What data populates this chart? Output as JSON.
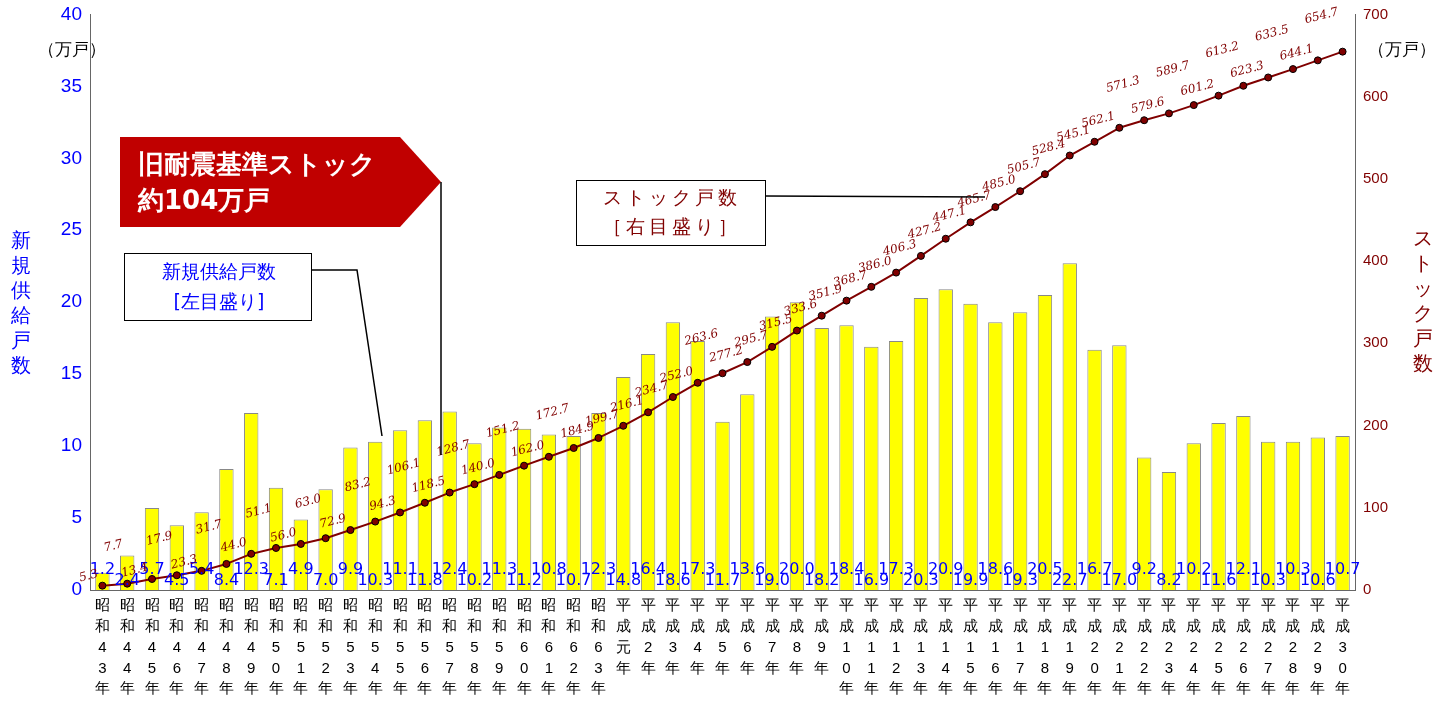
{
  "chart_data": {
    "type": "bar",
    "ylabel": "新規供給戸数",
    "y2label": "ストック戸数",
    "categories": [
      "昭和43年",
      "昭和44年",
      "昭和45年",
      "昭和46年",
      "昭和47年",
      "昭和48年",
      "昭和49年",
      "昭和50年",
      "昭和51年",
      "昭和52年",
      "昭和53年",
      "昭和54年",
      "昭和55年",
      "昭和56年",
      "昭和57年",
      "昭和58年",
      "昭和59年",
      "昭和60年",
      "昭和61年",
      "昭和62年",
      "昭和63年",
      "平成元年",
      "平成2年",
      "平成3年",
      "平成4年",
      "平成5年",
      "平成6年",
      "平成7年",
      "平成8年",
      "平成9年",
      "平成10年",
      "平成11年",
      "平成12年",
      "平成13年",
      "平成14年",
      "平成15年",
      "平成16年",
      "平成17年",
      "平成18年",
      "平成19年",
      "平成20年",
      "平成21年",
      "平成22年",
      "平成23年",
      "平成24年",
      "平成25年",
      "平成26年",
      "平成27年",
      "平成28年",
      "平成29年",
      "平成30年"
    ],
    "series": [
      {
        "color": "#ffff00",
        "values": [
          1.2,
          2.4,
          5.7,
          4.5,
          5.4,
          8.4,
          12.3,
          7.1,
          4.9,
          7.0,
          9.9,
          10.3,
          11.1,
          11.8,
          12.4,
          10.2,
          11.3,
          11.2,
          10.8,
          10.7,
          12.3,
          14.8,
          16.4,
          18.6,
          17.3,
          11.7,
          13.6,
          19.0,
          20.0,
          18.2,
          18.4,
          16.9,
          17.3,
          20.3,
          20.9,
          19.9,
          18.6,
          19.3,
          20.5,
          22.7,
          16.7,
          17.0,
          9.2,
          8.2,
          10.2,
          11.6,
          12.1,
          10.3,
          10.3,
          10.6,
          10.7
        ],
        "value_labels": [
          "1.2",
          "2.4",
          "5.7",
          "4.5",
          "5.4",
          "8.4",
          "12.3",
          "7.1",
          "4.9",
          "7.0",
          "9.9",
          "10.3",
          "11.1",
          "11.8",
          "12.4",
          "10.2",
          "11.3",
          "11.2",
          "10.8",
          "10.7",
          "12.3",
          "14.8",
          "16.4",
          "18.6",
          "17.3",
          "11.7",
          "13.6",
          "19.0",
          "20.0",
          "18.2",
          "18.4",
          "16.9",
          "17.3",
          "20.3",
          "20.9",
          "19.9",
          "18.6",
          "19.3",
          "20.5",
          "22.7",
          "16.7",
          "17.0",
          "9.2",
          "8.2",
          "10.2",
          "11.6",
          "12.1",
          "10.3",
          "10.3",
          "10.6",
          "10.7"
        ]
      },
      {
        "type": "line",
        "axis": "y2",
        "color": "#800000",
        "values": [
          5.3,
          7.7,
          13.4,
          17.9,
          23.3,
          31.7,
          44.0,
          51.1,
          56.0,
          63.0,
          72.9,
          83.2,
          94.3,
          106.1,
          118.5,
          128.7,
          140.0,
          151.2,
          162.0,
          172.7,
          184.9,
          199.7,
          216.1,
          234.7,
          252.0,
          263.6,
          277.2,
          295.7,
          315.5,
          333.6,
          351.9,
          368.7,
          386.0,
          406.3,
          427.2,
          447.1,
          465.7,
          485.0,
          505.7,
          528.4,
          545.1,
          562.1,
          571.3,
          579.6,
          589.7,
          601.2,
          613.2,
          623.3,
          633.5,
          644.1,
          654.7
        ],
        "value_labels": [
          "5.3",
          "7.7",
          "13.4",
          "17.9",
          "23.3",
          "31.7",
          "44.0",
          "51.1",
          "56.0",
          "63.0",
          "72.9",
          "83.2",
          "94.3",
          "106.1",
          "118.5",
          "128.7",
          "140.0",
          "151.2",
          "162.0",
          "172.7",
          "184.9",
          "199.7",
          "216.1",
          "234.7",
          "252.0",
          "263.6",
          "277.2",
          "295.7",
          "315.5",
          "333.6",
          "351.9",
          "368.7",
          "386.0",
          "406.3",
          "427.2",
          "447.1",
          "465.7",
          "485.0",
          "505.7",
          "528.4",
          "545.1",
          "562.1",
          "571.3",
          "579.6",
          "589.7",
          "601.2",
          "613.2",
          "623.3",
          "633.5",
          "644.1",
          "654.7"
        ]
      }
    ],
    "ylim": [
      0,
      40
    ],
    "yticks": [
      0,
      5,
      10,
      15,
      20,
      25,
      30,
      35,
      40
    ],
    "y2lim": [
      0,
      700
    ],
    "y2ticks": [
      0,
      100,
      200,
      300,
      400,
      500,
      600,
      700
    ],
    "marker": "circle",
    "line_style": "solid",
    "annotations": [
      "（万戸）",
      "（万戸）",
      "旧耐震基準ストック約104万戸",
      "新規供給戸数[左目盛り]",
      "ストック戸数［右目盛り］"
    ]
  }
}
